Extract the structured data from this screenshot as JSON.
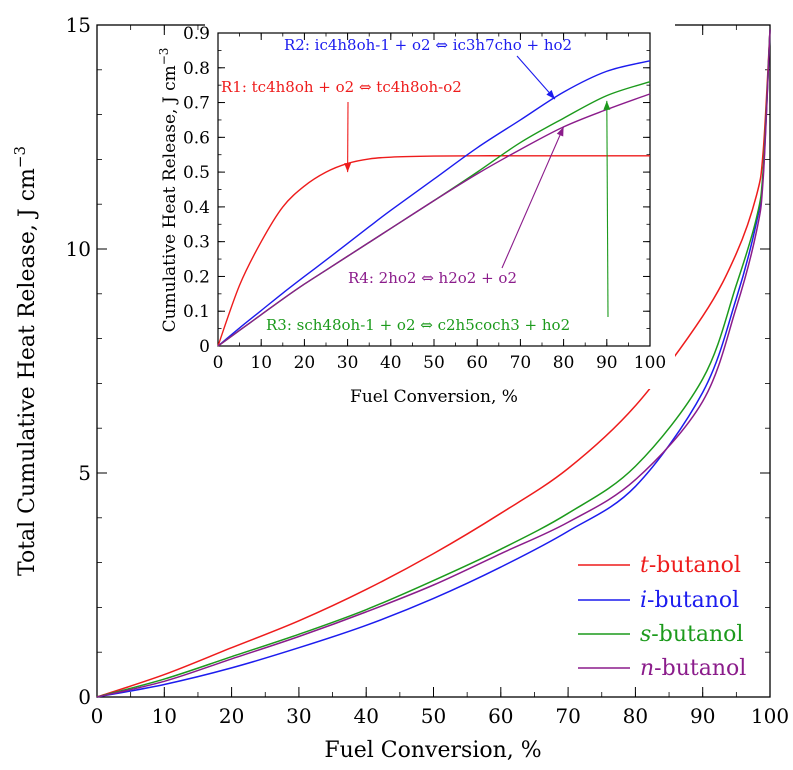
{
  "chart_data": [
    {
      "type": "line",
      "xlabel": "Fuel Conversion, %",
      "ylabel_text": "Total Cumulative Heat Release, J cm",
      "ylabel_sup": "−3",
      "xlim": [
        0,
        100
      ],
      "ylim": [
        0,
        15
      ],
      "x_ticks": [
        "0",
        "10",
        "20",
        "30",
        "40",
        "50",
        "60",
        "70",
        "80",
        "90",
        "100"
      ],
      "y_ticks": [
        "0",
        "5",
        "10",
        "15"
      ],
      "x": [
        0,
        10,
        20,
        30,
        40,
        50,
        60,
        70,
        80,
        90,
        95,
        98,
        99,
        100
      ],
      "series": [
        {
          "name_prefix": "t",
          "name_suffix": "-butanol",
          "color": "#ee1c1c",
          "values": [
            0,
            0.5,
            1.1,
            1.7,
            2.4,
            3.2,
            4.1,
            5.1,
            6.5,
            8.5,
            9.9,
            11.2,
            12.2,
            14.9
          ]
        },
        {
          "name_prefix": "i",
          "name_suffix": "-butanol",
          "color": "#1c1cee",
          "values": [
            0,
            0.28,
            0.65,
            1.1,
            1.6,
            2.2,
            2.9,
            3.7,
            4.7,
            6.8,
            8.9,
            10.6,
            11.7,
            14.9
          ]
        },
        {
          "name_prefix": "s",
          "name_suffix": "-butanol",
          "color": "#1c9a1c",
          "values": [
            0,
            0.4,
            0.9,
            1.4,
            1.95,
            2.6,
            3.3,
            4.1,
            5.15,
            7.1,
            9.2,
            10.7,
            11.8,
            14.9
          ]
        },
        {
          "name_prefix": "n",
          "name_suffix": "-butanol",
          "color": "#8b1c8b",
          "values": [
            0,
            0.35,
            0.85,
            1.35,
            1.9,
            2.5,
            3.2,
            3.9,
            4.85,
            6.6,
            8.7,
            10.4,
            11.6,
            14.9
          ]
        }
      ]
    },
    {
      "type": "line",
      "xlabel": "Fuel Conversion, %",
      "ylabel_text": "Cumulative Heat Release, J cm",
      "ylabel_sup": "−3",
      "xlim": [
        0,
        100
      ],
      "ylim": [
        0,
        0.9
      ],
      "x_ticks": [
        "0",
        "10",
        "20",
        "30",
        "40",
        "50",
        "60",
        "70",
        "80",
        "90",
        "100"
      ],
      "y_ticks": [
        "0",
        "0.1",
        "0.2",
        "0.3",
        "0.4",
        "0.5",
        "0.6",
        "0.7",
        "0.8",
        "0.9"
      ],
      "x": [
        0,
        5,
        10,
        15,
        20,
        25,
        30,
        35,
        40,
        50,
        60,
        70,
        80,
        90,
        100
      ],
      "series": [
        {
          "color": "#ee1c1c",
          "values": [
            0,
            0.175,
            0.3,
            0.4,
            0.46,
            0.5,
            0.525,
            0.538,
            0.543,
            0.546,
            0.547,
            0.547,
            0.547,
            0.547,
            0.547
          ]
        },
        {
          "color": "#1c1cee",
          "values": [
            0,
            0.052,
            0.102,
            0.152,
            0.2,
            0.247,
            0.295,
            0.343,
            0.39,
            0.48,
            0.57,
            0.65,
            0.73,
            0.79,
            0.82
          ]
        },
        {
          "color": "#1c9a1c",
          "values": [
            0,
            0.045,
            0.09,
            0.135,
            0.178,
            0.218,
            0.258,
            0.298,
            0.338,
            0.418,
            0.5,
            0.585,
            0.655,
            0.72,
            0.76
          ]
        },
        {
          "color": "#8b1c8b",
          "values": [
            0,
            0.045,
            0.09,
            0.135,
            0.178,
            0.218,
            0.258,
            0.298,
            0.338,
            0.418,
            0.495,
            0.565,
            0.63,
            0.68,
            0.725
          ]
        }
      ],
      "annotations": [
        {
          "text": "R1: tc4h8oh + o2 ⇔ tc4h8oh-o2",
          "color": "#ee1c1c",
          "target": [
            30,
            0.5
          ]
        },
        {
          "text": "R2: ic4h8oh-1 + o2 ⇔ ic3h7cho + ho2",
          "color": "#1c1cee",
          "target": [
            78,
            0.71
          ]
        },
        {
          "text": "R3: sch48oh-1 + o2 ⇔ c2h5coch3 + ho2",
          "color": "#1c9a1c",
          "target": [
            90,
            0.705
          ]
        },
        {
          "text": "R4: 2ho2 ⇔ h2o2 + o2",
          "color": "#8b1c8b",
          "target": [
            80,
            0.63
          ]
        }
      ]
    }
  ]
}
